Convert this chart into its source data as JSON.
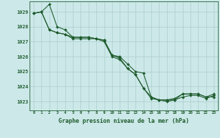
{
  "title": "Graphe pression niveau de la mer (hPa)",
  "bg_color": "#cce8e8",
  "grid_color": "#aacccc",
  "line_color": "#1f5c2e",
  "ylim": [
    1022.4,
    1029.7
  ],
  "xlim": [
    -0.5,
    23.5
  ],
  "yticks": [
    1023,
    1024,
    1025,
    1026,
    1027,
    1028,
    1029
  ],
  "xticks": [
    0,
    1,
    2,
    3,
    4,
    5,
    6,
    7,
    8,
    9,
    10,
    11,
    12,
    13,
    14,
    15,
    16,
    17,
    18,
    19,
    20,
    21,
    22,
    23
  ],
  "series": [
    [
      1028.9,
      1029.0,
      1029.5,
      1028.0,
      1027.8,
      1027.3,
      1027.3,
      1027.3,
      1027.2,
      1027.1,
      1026.1,
      1025.9,
      1025.2,
      1024.8,
      1023.9,
      1023.3,
      1023.1,
      1023.1,
      1023.2,
      1023.5,
      1023.5,
      1023.5,
      1023.3,
      1023.3
    ],
    [
      1028.9,
      1029.0,
      1027.8,
      1027.6,
      1027.5,
      1027.3,
      1027.3,
      1027.3,
      1027.2,
      1027.1,
      1026.1,
      1026.0,
      1025.5,
      1025.0,
      1024.9,
      1023.3,
      1023.1,
      1023.1,
      1023.1,
      1023.5,
      1023.5,
      1023.5,
      1023.3,
      1023.5
    ],
    [
      1028.9,
      1029.0,
      1027.8,
      1027.6,
      1027.5,
      1027.2,
      1027.2,
      1027.2,
      1027.2,
      1027.0,
      1026.0,
      1025.8,
      1025.2,
      1024.8,
      1023.9,
      1023.2,
      1023.1,
      1023.0,
      1023.1,
      1023.3,
      1023.4,
      1023.4,
      1023.2,
      1023.4
    ]
  ]
}
